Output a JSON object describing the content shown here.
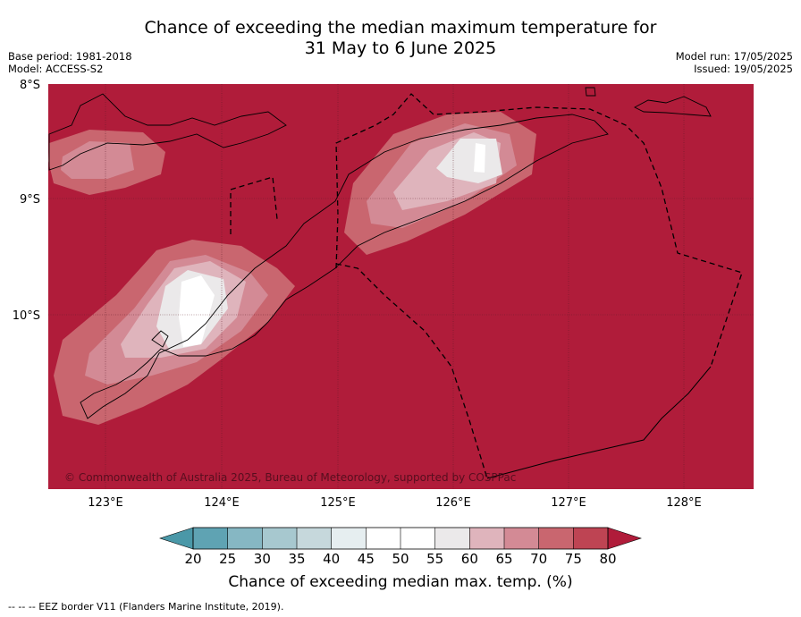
{
  "title_line1": "Chance of exceeding the median maximum temperature for",
  "title_line2": "31 May to 6 June 2025",
  "base_period": "Base period: 1981-2018",
  "model": "Model: ACCESS-S2",
  "model_run": "Model run: 17/05/2025",
  "issued": "Issued: 19/05/2025",
  "lat_labels": [
    "8°S",
    "9°S",
    "10°S"
  ],
  "lon_labels": [
    "123°E",
    "124°E",
    "125°E",
    "126°E",
    "127°E",
    "128°E"
  ],
  "copyright": "© Commonwealth of Australia 2025, Bureau of Meteorology, supported by COSPPac",
  "colorbar": {
    "ticks": [
      "20",
      "25",
      "30",
      "35",
      "40",
      "45",
      "50",
      "55",
      "60",
      "65",
      "70",
      "75",
      "80"
    ],
    "colors": [
      "#5fa3b3",
      "#86b7c3",
      "#a7c8cf",
      "#c6d8dc",
      "#e6eef0",
      "#ffffff",
      "#ffffff",
      "#ebe9ea",
      "#dfb4bc",
      "#d38a95",
      "#c9666f",
      "#be4453"
    ],
    "under_color": "#4a98a8",
    "over_color": "#b01c3a",
    "label": "Chance of exceeding median max. temp. (%)"
  },
  "background_color": "#b01c3a",
  "footer": "--  --  -- EEZ border V11 (Flanders Marine Institute, 2019)."
}
